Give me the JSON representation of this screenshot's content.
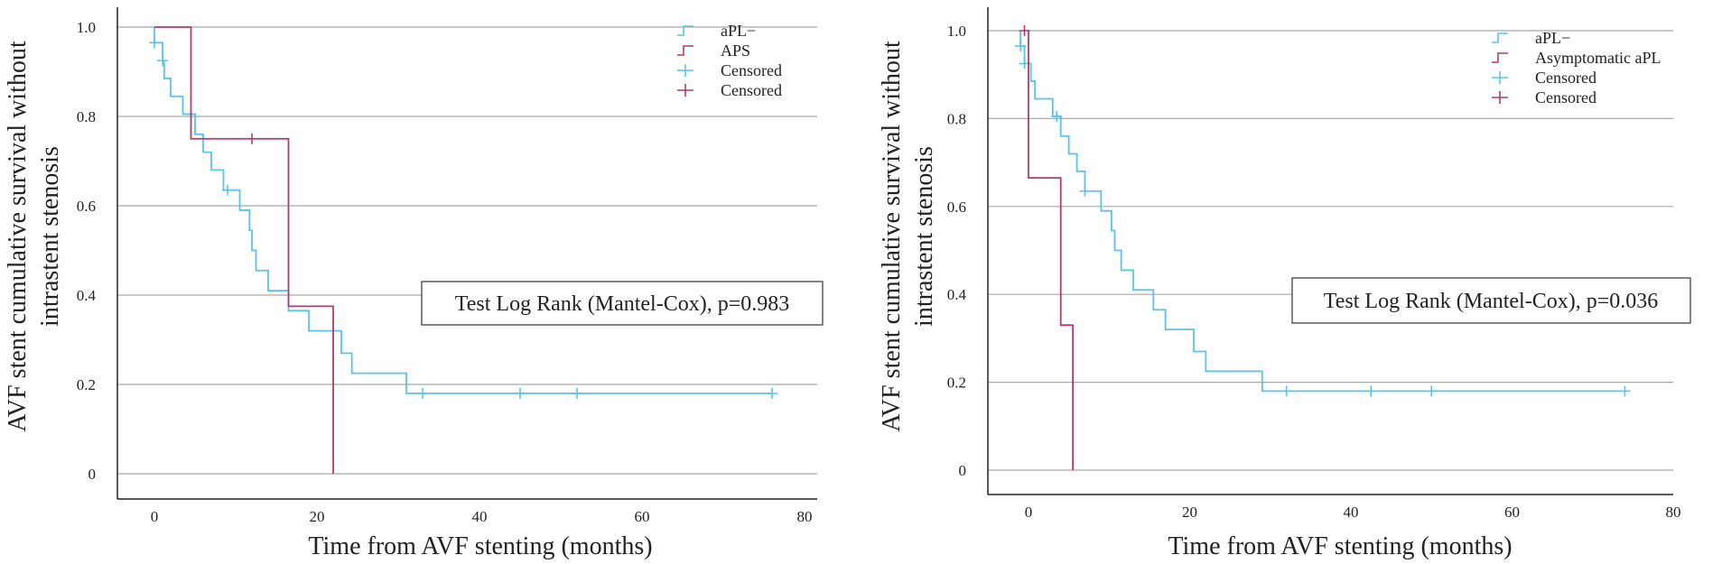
{
  "chart_data": [
    {
      "type": "line",
      "subtype": "kaplan-meier",
      "xlabel": "Time from AVF stenting (months)",
      "ylabel_lines": [
        "AVF stent cumulative survival without",
        "intrastent stenosis"
      ],
      "xlim": [
        -5,
        82
      ],
      "ylim": [
        -0.02,
        1.05
      ],
      "xticks": [
        0,
        20,
        40,
        60,
        80
      ],
      "xtick_labels": [
        "0",
        "20",
        "40",
        "60",
        "80"
      ],
      "yticks": [
        0,
        0.2,
        0.4,
        0.6,
        0.8,
        1.0
      ],
      "ytick_labels": [
        "0",
        "0.2",
        "0.4",
        "0.6",
        "0.8",
        "1.0"
      ],
      "grid": "horizontal",
      "legend": [
        {
          "label": "aPL−",
          "kind": "line",
          "color": "#5bc3ea"
        },
        {
          "label": "APS",
          "kind": "line",
          "color": "#b33a6e"
        },
        {
          "label": "Censored",
          "kind": "censor",
          "color": "#5bc3ea"
        },
        {
          "label": "Censored",
          "kind": "censor",
          "color": "#b33a6e"
        }
      ],
      "annotation": "Test Log Rank (Mantel-Cox), p=0.983",
      "series": [
        {
          "name": "aPL−",
          "color": "#5bc3ea",
          "steps": [
            [
              0,
              1.0
            ],
            [
              0,
              0.965
            ],
            [
              1,
              0.925
            ],
            [
              1.2,
              0.885
            ],
            [
              2,
              0.845
            ],
            [
              3.5,
              0.805
            ],
            [
              5,
              0.76
            ],
            [
              6,
              0.72
            ],
            [
              7,
              0.68
            ],
            [
              8.5,
              0.635
            ],
            [
              10.5,
              0.59
            ],
            [
              11.7,
              0.545
            ],
            [
              12,
              0.5
            ],
            [
              12.5,
              0.455
            ],
            [
              14,
              0.41
            ],
            [
              16.5,
              0.365
            ],
            [
              19,
              0.32
            ],
            [
              23,
              0.27
            ],
            [
              24.3,
              0.225
            ],
            [
              31,
              0.18
            ],
            [
              76,
              0.18
            ]
          ],
          "censored": [
            [
              0,
              0.965
            ],
            [
              1,
              0.925
            ],
            [
              4.5,
              0.805
            ],
            [
              9,
              0.635
            ],
            [
              33,
              0.18
            ],
            [
              45,
              0.18
            ],
            [
              52,
              0.18
            ],
            [
              76,
              0.18
            ]
          ]
        },
        {
          "name": "APS",
          "color": "#b33a6e",
          "steps": [
            [
              0,
              1.0
            ],
            [
              4.5,
              0.75
            ],
            [
              16.5,
              0.375
            ],
            [
              22,
              0.0
            ]
          ],
          "censored": [
            [
              12,
              0.75
            ]
          ]
        }
      ]
    },
    {
      "type": "line",
      "subtype": "kaplan-meier",
      "xlabel": "Time from AVF stenting (months)",
      "ylabel_lines": [
        "AVF stent cumulative survival without",
        "intrastent stenosis"
      ],
      "xlim": [
        -5,
        80
      ],
      "ylim": [
        -0.02,
        1.05
      ],
      "xticks": [
        0,
        20,
        40,
        60,
        80
      ],
      "xtick_labels": [
        "0",
        "20",
        "40",
        "60",
        "80"
      ],
      "yticks": [
        0,
        0.2,
        0.4,
        0.6,
        0.8,
        1.0
      ],
      "ytick_labels": [
        "0",
        "0.2",
        "0.4",
        "0.6",
        "0.8",
        "1.0"
      ],
      "grid": "horizontal",
      "legend": [
        {
          "label": "aPL−",
          "kind": "line",
          "color": "#5bc3ea"
        },
        {
          "label": "Asymptomatic aPL",
          "kind": "line",
          "color": "#b33a6e"
        },
        {
          "label": "Censored",
          "kind": "censor",
          "color": "#5bc3ea"
        },
        {
          "label": "Censored",
          "kind": "censor",
          "color": "#b33a6e"
        }
      ],
      "annotation": "Test Log Rank (Mantel-Cox), p=0.036",
      "series": [
        {
          "name": "aPL−",
          "color": "#5bc3ea",
          "steps": [
            [
              -1,
              1.0
            ],
            [
              -1,
              0.965
            ],
            [
              -0.5,
              0.925
            ],
            [
              0.3,
              0.885
            ],
            [
              0.8,
              0.845
            ],
            [
              3,
              0.805
            ],
            [
              4,
              0.76
            ],
            [
              5,
              0.72
            ],
            [
              6,
              0.68
            ],
            [
              7,
              0.635
            ],
            [
              9,
              0.59
            ],
            [
              10.3,
              0.545
            ],
            [
              10.7,
              0.5
            ],
            [
              11.5,
              0.455
            ],
            [
              13,
              0.41
            ],
            [
              15.5,
              0.365
            ],
            [
              17,
              0.32
            ],
            [
              20.5,
              0.27
            ],
            [
              22,
              0.225
            ],
            [
              29,
              0.18
            ],
            [
              74,
              0.18
            ]
          ],
          "censored": [
            [
              -1,
              0.965
            ],
            [
              -0.5,
              0.925
            ],
            [
              3.5,
              0.805
            ],
            [
              7,
              0.635
            ],
            [
              32,
              0.18
            ],
            [
              42.5,
              0.18
            ],
            [
              50,
              0.18
            ],
            [
              74,
              0.18
            ]
          ]
        },
        {
          "name": "Asymptomatic aPL",
          "color": "#b33a6e",
          "steps": [
            [
              0,
              1.0
            ],
            [
              0,
              0.665
            ],
            [
              4,
              0.33
            ],
            [
              5.5,
              0.0
            ]
          ],
          "censored": [
            [
              -0.5,
              1.0
            ]
          ]
        }
      ]
    }
  ]
}
